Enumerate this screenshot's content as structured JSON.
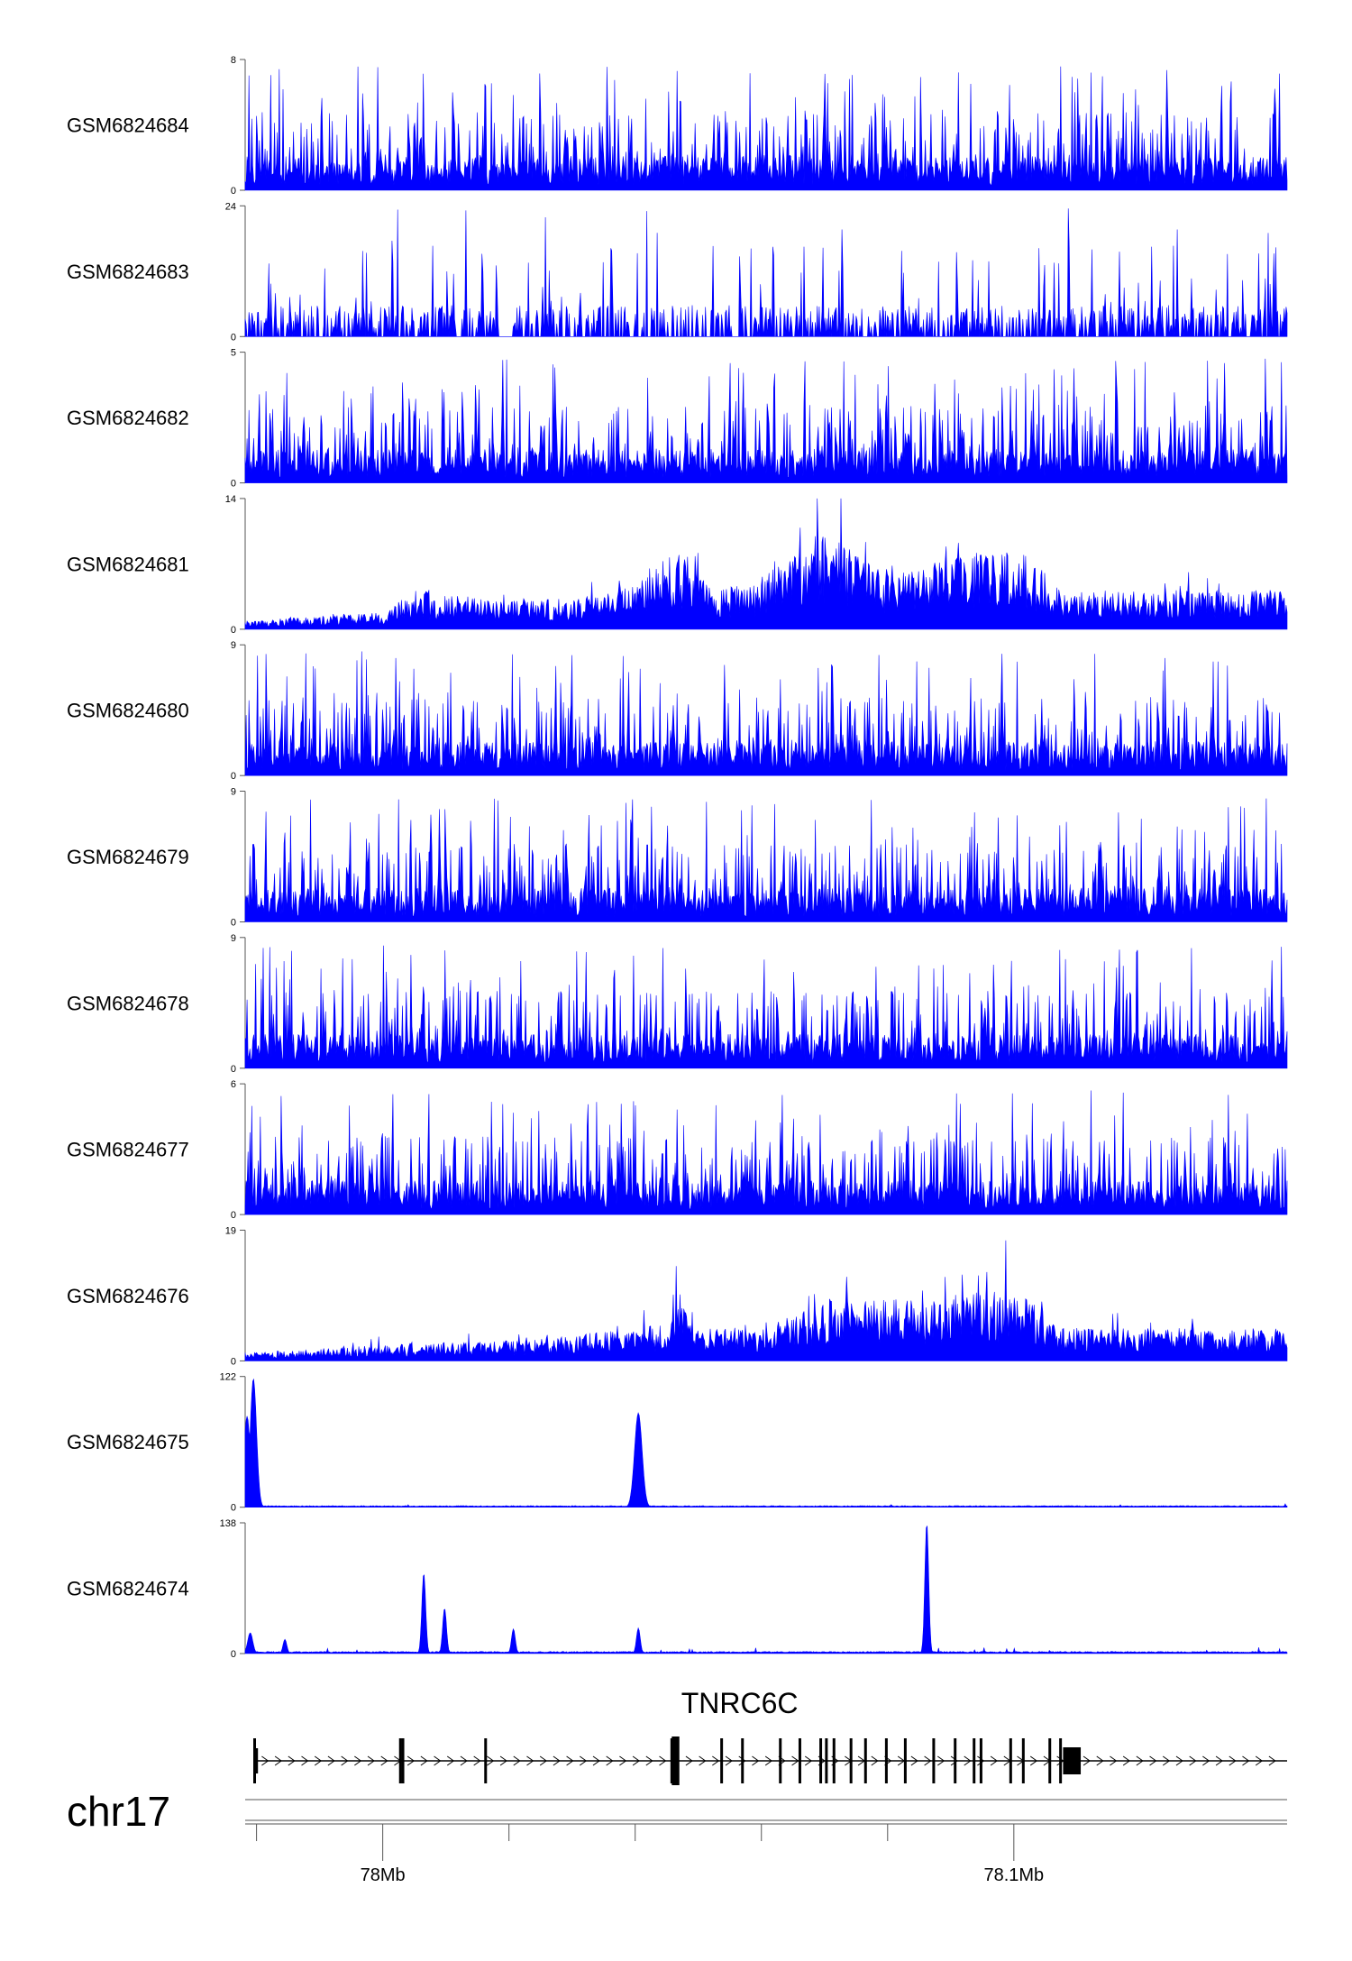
{
  "chart_data": {
    "type": "area",
    "title": "",
    "chromosome": "chr17",
    "gene": {
      "name": "TNRC6C",
      "start": 77.9798,
      "end": 78.1433,
      "strand": "+"
    },
    "xlim": [
      77.9782,
      78.1433
    ],
    "xunit": "Mb",
    "x_ticks": [
      77.98,
      78.0,
      78.02,
      78.04,
      78.06,
      78.08,
      78.1
    ],
    "x_tick_labels": [
      {
        "value": 78.0,
        "label": "78Mb"
      },
      {
        "value": 78.1,
        "label": "78.1Mb"
      }
    ],
    "fill_color": "#0000ff",
    "tracks": [
      {
        "name": "GSM6824684",
        "ymin": "0",
        "ymax": "8",
        "ylim": [
          0,
          8
        ],
        "profile": "noise",
        "baseline": 0.4,
        "peaks": []
      },
      {
        "name": "GSM6824683",
        "ymin": "0",
        "ymax": "24",
        "ylim": [
          0,
          24
        ],
        "profile": "sparse",
        "baseline": 0.5,
        "peaks": []
      },
      {
        "name": "GSM6824682",
        "ymin": "0",
        "ymax": "5",
        "ylim": [
          0,
          5
        ],
        "profile": "noise",
        "baseline": 0.5,
        "peaks": []
      },
      {
        "name": "GSM6824681",
        "ymin": "0",
        "ymax": "14",
        "ylim": [
          0,
          14
        ],
        "profile": "envelope",
        "envelope": [
          [
            77.98,
            0.8
          ],
          [
            78.0,
            1.5
          ],
          [
            78.005,
            3.5
          ],
          [
            78.02,
            2.5
          ],
          [
            78.035,
            3.0
          ],
          [
            78.04,
            4.5
          ],
          [
            78.047,
            7.5
          ],
          [
            78.052,
            3.5
          ],
          [
            78.06,
            4.5
          ],
          [
            78.065,
            7.0
          ],
          [
            78.07,
            9.0
          ],
          [
            78.078,
            5.5
          ],
          [
            78.09,
            6.5
          ],
          [
            78.1,
            7.5
          ],
          [
            78.108,
            3.5
          ]
        ],
        "peaks": []
      },
      {
        "name": "GSM6824680",
        "ymin": "0",
        "ymax": "9",
        "ylim": [
          0,
          9
        ],
        "profile": "noise",
        "baseline": 0.5,
        "peaks": []
      },
      {
        "name": "GSM6824679",
        "ymin": "0",
        "ymax": "9",
        "ylim": [
          0,
          9
        ],
        "profile": "noise",
        "baseline": 0.5,
        "peaks": []
      },
      {
        "name": "GSM6824678",
        "ymin": "0",
        "ymax": "9",
        "ylim": [
          0,
          9
        ],
        "profile": "noise",
        "baseline": 0.5,
        "peaks": []
      },
      {
        "name": "GSM6824677",
        "ymin": "0",
        "ymax": "6",
        "ylim": [
          0,
          6
        ],
        "profile": "noise",
        "baseline": 0.55,
        "peaks": []
      },
      {
        "name": "GSM6824676",
        "ymin": "0",
        "ymax": "19",
        "ylim": [
          0,
          19
        ],
        "profile": "envelope",
        "envelope": [
          [
            77.98,
            1.0
          ],
          [
            78.0,
            2.0
          ],
          [
            78.02,
            2.5
          ],
          [
            78.035,
            3.5
          ],
          [
            78.045,
            4.5
          ],
          [
            78.047,
            12.0
          ],
          [
            78.05,
            4.0
          ],
          [
            78.06,
            4.0
          ],
          [
            78.07,
            7.5
          ],
          [
            78.085,
            7.5
          ],
          [
            78.1,
            9.0
          ],
          [
            78.108,
            4.0
          ]
        ],
        "peaks": []
      },
      {
        "name": "GSM6824675",
        "ymin": "0",
        "ymax": "122",
        "ylim": [
          0,
          122
        ],
        "profile": "flat",
        "baseline": 0.6,
        "peaks": [
          {
            "x": 77.9785,
            "y": 85,
            "w": 0.0005
          },
          {
            "x": 77.9795,
            "y": 120,
            "w": 0.0005
          },
          {
            "x": 78.0405,
            "y": 88,
            "w": 0.0006
          }
        ]
      },
      {
        "name": "GSM6824674",
        "ymin": "0",
        "ymax": "138",
        "ylim": [
          0,
          138
        ],
        "profile": "flat",
        "baseline": 0.8,
        "peaks": [
          {
            "x": 77.979,
            "y": 22,
            "w": 0.0004
          },
          {
            "x": 77.9845,
            "y": 15,
            "w": 0.0003
          },
          {
            "x": 78.0065,
            "y": 85,
            "w": 0.0003
          },
          {
            "x": 78.0098,
            "y": 48,
            "w": 0.0003
          },
          {
            "x": 78.0207,
            "y": 26,
            "w": 0.0003
          },
          {
            "x": 78.0405,
            "y": 27,
            "w": 0.0003
          },
          {
            "x": 78.0862,
            "y": 138,
            "w": 0.0003
          }
        ]
      }
    ],
    "exons": [
      77.9797,
      78.0028,
      78.0032,
      78.0163,
      78.0458,
      78.0537,
      78.057,
      78.063,
      78.0661,
      78.0694,
      78.0703,
      78.0715,
      78.0742,
      78.0765,
      78.0798,
      78.0828,
      78.0873,
      78.0907,
      78.0937,
      78.0948,
      78.0995,
      78.1015,
      78.1057,
      78.1074
    ],
    "exon_blocks": [
      {
        "start": 78.0458,
        "end": 78.047
      },
      {
        "start": 78.1078,
        "end": 78.1106
      }
    ]
  }
}
